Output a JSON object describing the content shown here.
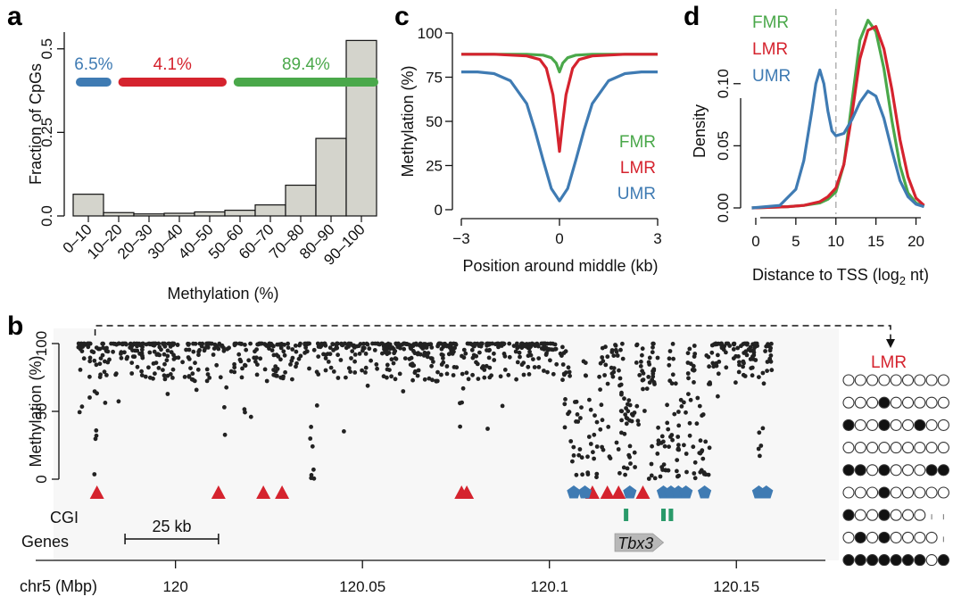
{
  "colors": {
    "fmr": "#4aa84a",
    "lmr": "#d5232e",
    "umr": "#3f7bb3",
    "cgi": "#2a9a6a",
    "bar_fill": "#d4d4cc",
    "gene_fill": "#b8b8b8"
  },
  "panels": [
    {
      "letter": "a"
    },
    {
      "letter": "b"
    },
    {
      "letter": "c"
    },
    {
      "letter": "d"
    }
  ],
  "panel_a": {
    "legend_values": [
      "6.5%",
      "4.1%",
      "89.4%"
    ],
    "legend_extents": [
      [
        0,
        12
      ],
      [
        14,
        50
      ],
      [
        52,
        100
      ]
    ]
  },
  "panel_b": {
    "track_labels": {
      "cgi": "CGI",
      "genes": "Genes"
    },
    "scale_bar_label": "25 kb",
    "gene_name": "Tbx3",
    "chr_label": "chr5 (Mbp)",
    "lmr_box_label": "LMR",
    "triangles_mbp": [
      119.979,
      120.0115,
      120.0235,
      120.0285,
      120.0765,
      120.0779,
      120.1115,
      120.1155,
      120.1185,
      120.125
    ],
    "pentagons_mbp": [
      120.1065,
      120.1095,
      120.1215,
      120.1305,
      120.1325,
      120.1345,
      120.1365,
      120.1415,
      120.156,
      120.158
    ],
    "cgi_mbp": [
      120.1205,
      120.1305,
      120.1325
    ],
    "gene_mbp": [
      120.1175,
      120.1305
    ],
    "scale_bar_mbp": [
      119.9865,
      120.0115
    ],
    "dip_sites_mbp": [
      119.9785,
      120.0135,
      120.0365,
      120.0765,
      120.1075,
      120.1115,
      120.1215,
      120.1305,
      120.1355,
      120.1405,
      120.1565
    ],
    "lmr_pattern": [
      [
        0,
        0,
        0,
        0,
        0,
        0,
        0,
        0,
        0
      ],
      [
        0,
        0,
        0,
        1,
        0,
        0,
        0,
        0,
        0
      ],
      [
        1,
        0,
        0,
        1,
        0,
        0,
        1,
        0,
        0
      ],
      [
        0,
        0,
        0,
        0,
        0,
        0,
        0,
        0,
        0
      ],
      [
        1,
        1,
        0,
        1,
        0,
        0,
        0,
        1,
        1
      ],
      [
        0,
        0,
        0,
        1,
        0,
        0,
        0,
        0,
        0
      ],
      [
        1,
        0,
        0,
        1,
        0,
        0,
        0,
        2,
        2
      ],
      [
        0,
        1,
        0,
        1,
        0,
        0,
        0,
        0,
        2
      ],
      [
        1,
        1,
        1,
        1,
        1,
        1,
        1,
        0,
        1
      ]
    ]
  },
  "chart_data": [
    {
      "panel": "a",
      "type": "bar",
      "categories": [
        "0–10",
        "10–20",
        "20–30",
        "30–40",
        "40–50",
        "50–60",
        "60–70",
        "70–80",
        "80–90",
        "90–100"
      ],
      "values": [
        0.065,
        0.01,
        0.006,
        0.008,
        0.012,
        0.017,
        0.033,
        0.092,
        0.232,
        0.525
      ],
      "xlabel": "Methylation (%)",
      "ylabel": "Fraction of CpGs",
      "ylim": [
        0,
        0.55
      ],
      "yticks": [
        0.0,
        0.25,
        0.5
      ],
      "ytick_labels": [
        "0.0",
        "0.25",
        "0.5"
      ]
    },
    {
      "panel": "b",
      "type": "scatter",
      "xlabel": "chr5 (Mbp)",
      "ylabel": "Methylation (%)",
      "xlim": [
        119.965,
        120.175
      ],
      "ylim": [
        0,
        100
      ],
      "xticks": [
        120.0,
        120.05,
        120.1,
        120.15
      ],
      "xtick_labels": [
        "120",
        "120.05",
        "120.1",
        "120.15"
      ],
      "yticks": [
        0,
        50,
        100
      ],
      "ytick_labels": [
        "0",
        "50",
        "100"
      ]
    },
    {
      "panel": "c",
      "type": "line",
      "xlabel": "Position around middle (kb)",
      "ylabel": "Methylation (%)",
      "xlim": [
        -3,
        3
      ],
      "ylim": [
        0,
        100
      ],
      "xticks": [
        -3,
        0,
        3
      ],
      "xtick_labels": [
        "−3",
        "0",
        "3"
      ],
      "yticks": [
        0,
        25,
        50,
        75,
        100
      ],
      "ytick_labels": [
        "0",
        "25",
        "50",
        "75",
        "100"
      ],
      "series": [
        {
          "name": "FMR",
          "x": [
            -3,
            -2,
            -1,
            -0.5,
            -0.25,
            -0.1,
            0,
            0.1,
            0.25,
            0.5,
            1,
            2,
            3
          ],
          "values": [
            88,
            88,
            88,
            87.5,
            86,
            83,
            78,
            83,
            86,
            87.5,
            88,
            88,
            88
          ]
        },
        {
          "name": "LMR",
          "x": [
            -3,
            -2,
            -1,
            -0.6,
            -0.4,
            -0.2,
            -0.1,
            0,
            0.1,
            0.2,
            0.4,
            0.6,
            1,
            2,
            3
          ],
          "values": [
            88,
            88,
            87,
            85,
            80,
            65,
            50,
            33,
            50,
            65,
            80,
            85,
            87,
            88,
            88
          ]
        },
        {
          "name": "UMR",
          "x": [
            -3,
            -2.5,
            -2,
            -1.5,
            -1,
            -0.75,
            -0.5,
            -0.25,
            0,
            0.25,
            0.5,
            0.75,
            1,
            1.5,
            2,
            2.5,
            3
          ],
          "values": [
            78,
            78,
            77,
            73,
            60,
            45,
            28,
            12,
            5,
            12,
            28,
            45,
            60,
            73,
            77,
            78,
            78
          ]
        }
      ]
    },
    {
      "panel": "d",
      "type": "line",
      "xlabel": "Distance to TSS (log",
      "xlabel_sub": "2",
      "xlabel_end": " nt)",
      "ylabel": "Density",
      "xlim": [
        -1,
        21.5
      ],
      "ylim": [
        0,
        0.158
      ],
      "xticks": [
        0,
        5,
        10,
        15,
        20
      ],
      "xtick_labels": [
        "0",
        "5",
        "10",
        "15",
        "20"
      ],
      "yticks": [
        0,
        0.05,
        0.1
      ],
      "ytick_labels": [
        "0.00",
        "0.05",
        "0.10"
      ],
      "vline": 10,
      "series": [
        {
          "name": "FMR",
          "x": [
            -0.5,
            4,
            6,
            8,
            9,
            10,
            11,
            12,
            13,
            14,
            15,
            16,
            17,
            18,
            19,
            20,
            21
          ],
          "values": [
            0,
            0.001,
            0.002,
            0.004,
            0.007,
            0.013,
            0.035,
            0.085,
            0.135,
            0.151,
            0.142,
            0.112,
            0.07,
            0.034,
            0.012,
            0.004,
            0.001
          ]
        },
        {
          "name": "LMR",
          "x": [
            -0.5,
            4,
            6,
            8,
            9,
            10,
            11,
            12,
            13,
            14,
            15,
            16,
            17,
            18,
            19,
            20,
            21
          ],
          "values": [
            0,
            0.001,
            0.002,
            0.005,
            0.009,
            0.016,
            0.035,
            0.075,
            0.12,
            0.143,
            0.146,
            0.128,
            0.095,
            0.055,
            0.025,
            0.008,
            0.002
          ]
        },
        {
          "name": "UMR",
          "x": [
            -0.5,
            3,
            5,
            6,
            7,
            7.5,
            8,
            8.5,
            9,
            9.5,
            10,
            11,
            12,
            13,
            14,
            15,
            16,
            17,
            18,
            19,
            20,
            21
          ],
          "values": [
            0.0,
            0.002,
            0.015,
            0.038,
            0.078,
            0.1,
            0.111,
            0.1,
            0.078,
            0.062,
            0.058,
            0.06,
            0.071,
            0.085,
            0.094,
            0.09,
            0.072,
            0.046,
            0.022,
            0.009,
            0.003,
            0.001
          ]
        }
      ]
    }
  ]
}
